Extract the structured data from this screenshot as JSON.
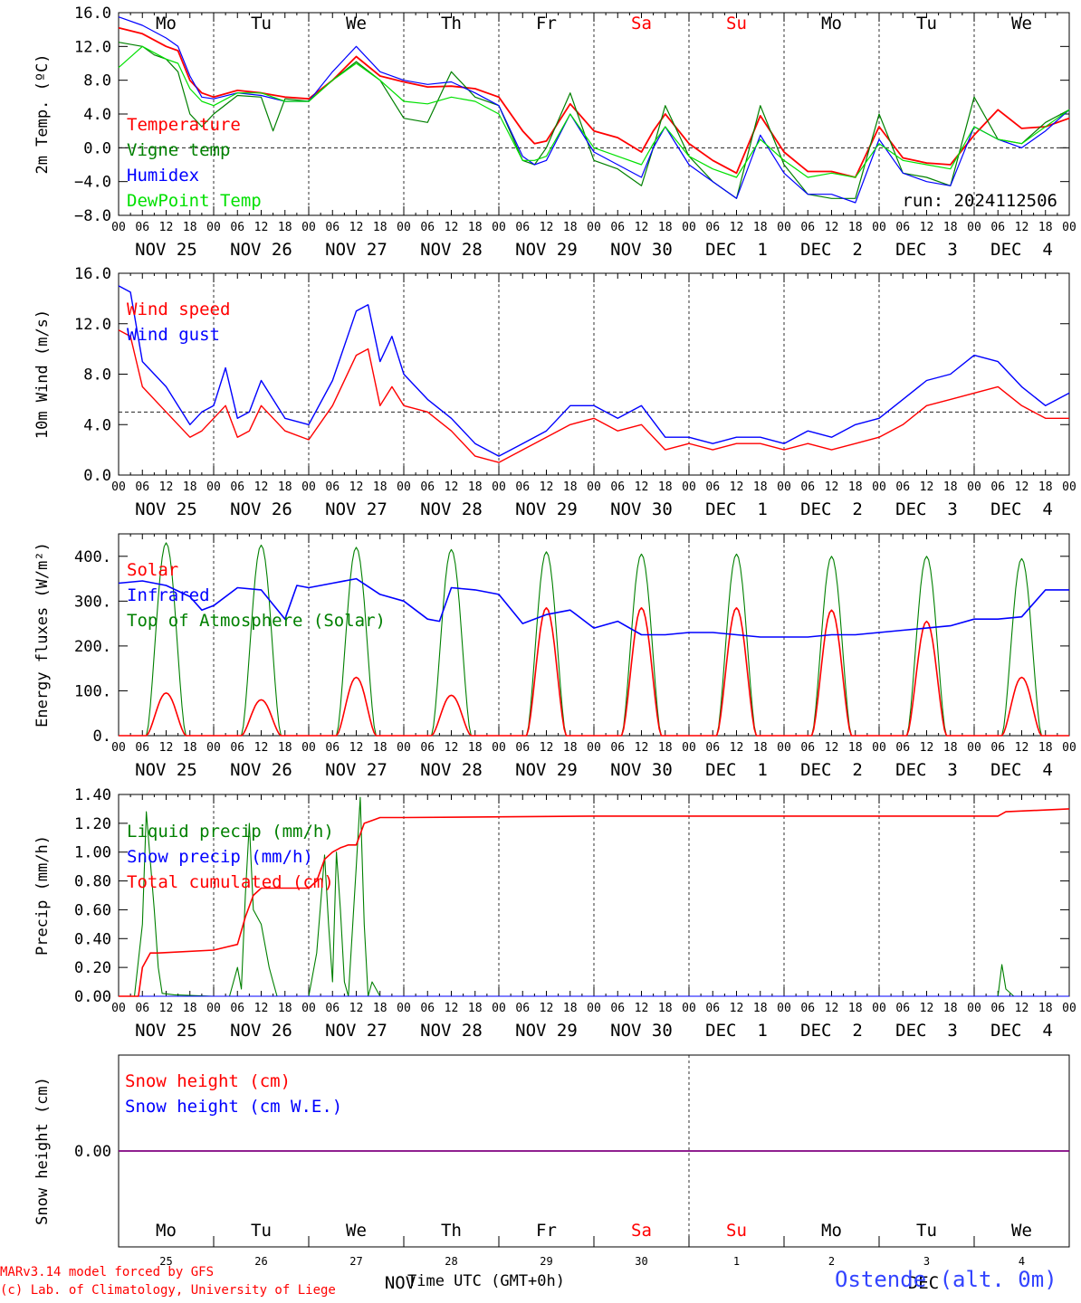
{
  "colors": {
    "red": "#ff0000",
    "green": "#008000",
    "blue": "#0000ff",
    "lightgreen": "#00e000",
    "purple": "#800080",
    "title_blue": "#3344ff"
  },
  "days": {
    "weekdays": [
      "Mo",
      "Tu",
      "We",
      "Th",
      "Fr",
      "Sa",
      "Su",
      "Mo",
      "Tu",
      "We"
    ],
    "weekend_flags": [
      false,
      false,
      false,
      false,
      false,
      true,
      true,
      false,
      false,
      false
    ],
    "date_labels": [
      "NOV 25",
      "NOV 26",
      "NOV 27",
      "NOV 28",
      "NOV 29",
      "NOV 30",
      "DEC  1",
      "DEC  2",
      "DEC  3",
      "DEC  4"
    ],
    "hour_ticks": [
      "00",
      "06",
      "12",
      "18"
    ],
    "final_hour": "00",
    "day_numbers": [
      "25",
      "26",
      "27",
      "28",
      "29",
      "30",
      "1",
      "2",
      "3",
      "4"
    ],
    "month_labels": [
      "NOV",
      "DEC"
    ]
  },
  "chart_data": [
    {
      "type": "line",
      "ylabel": "2m Temp. (ºC)",
      "ylim": [
        -8,
        16
      ],
      "yticks": [
        "16.0",
        "12.0",
        "8.0",
        "4.0",
        "0.0",
        "−4.0",
        "−8.0"
      ],
      "reference_line": 0,
      "run_label": "run: 2024112506",
      "x_unit": "hours from NOV 25 00 UTC",
      "series": [
        {
          "name": "Temperature",
          "color": "red",
          "x": [
            0,
            6,
            12,
            15,
            18,
            21,
            24,
            30,
            36,
            42,
            48,
            54,
            60,
            66,
            72,
            78,
            84,
            90,
            96,
            102,
            105,
            108,
            114,
            120,
            126,
            132,
            135,
            138,
            144,
            150,
            156,
            162,
            168,
            174,
            180,
            186,
            192,
            198,
            204,
            210,
            216,
            222,
            228,
            234,
            240
          ],
          "y": [
            14.2,
            13.5,
            12.0,
            11.5,
            8.0,
            6.5,
            6.0,
            6.8,
            6.5,
            6.0,
            5.8,
            8.0,
            10.8,
            8.5,
            7.8,
            7.2,
            7.3,
            7.0,
            6.0,
            2.0,
            0.5,
            0.8,
            5.2,
            2.0,
            1.2,
            -0.5,
            2.0,
            4.0,
            0.5,
            -1.5,
            -3.0,
            3.8,
            -0.5,
            -2.8,
            -2.8,
            -3.5,
            2.5,
            -1.2,
            -1.8,
            -2.0,
            1.5,
            4.5,
            2.3,
            2.5,
            3.5
          ]
        },
        {
          "name": "Vigne temp",
          "color": "green",
          "x": [
            0,
            6,
            9,
            12,
            15,
            18,
            21,
            24,
            30,
            36,
            39,
            42,
            48,
            54,
            60,
            66,
            72,
            78,
            84,
            90,
            96,
            102,
            105,
            108,
            114,
            120,
            126,
            132,
            135,
            138,
            144,
            150,
            156,
            162,
            168,
            174,
            180,
            186,
            192,
            198,
            204,
            210,
            216,
            222,
            228,
            234,
            240
          ],
          "y": [
            12.5,
            12.0,
            11.0,
            10.5,
            9.0,
            4.0,
            2.5,
            4.0,
            6.2,
            6.0,
            2.0,
            5.8,
            5.5,
            8.0,
            10.2,
            8.0,
            3.5,
            3.0,
            9.0,
            6.0,
            5.0,
            -1.5,
            -2.0,
            0.0,
            6.5,
            -1.5,
            -2.5,
            -4.5,
            0.0,
            5.0,
            -1.0,
            -4.0,
            -6.0,
            5.0,
            -2.0,
            -5.5,
            -6.0,
            -6.0,
            4.0,
            -3.0,
            -3.5,
            -4.5,
            6.0,
            1.0,
            0.5,
            3.0,
            4.5
          ]
        },
        {
          "name": "Humidex",
          "color": "blue",
          "x": [
            0,
            6,
            12,
            15,
            18,
            21,
            24,
            30,
            36,
            42,
            48,
            54,
            60,
            66,
            72,
            78,
            84,
            90,
            96,
            102,
            105,
            108,
            114,
            120,
            126,
            132,
            135,
            138,
            144,
            150,
            156,
            162,
            168,
            174,
            180,
            186,
            192,
            198,
            204,
            210,
            216,
            222,
            228,
            234,
            240
          ],
          "y": [
            15.5,
            14.5,
            13.0,
            12.0,
            8.5,
            6.0,
            5.8,
            6.5,
            6.2,
            5.5,
            5.5,
            9.0,
            12.0,
            9.0,
            8.0,
            7.5,
            7.8,
            6.5,
            5.0,
            -1.0,
            -2.0,
            -1.5,
            4.0,
            -0.5,
            -2.0,
            -3.5,
            0.0,
            2.5,
            -2.0,
            -4.0,
            -6.0,
            1.5,
            -3.0,
            -5.5,
            -5.5,
            -6.5,
            1.0,
            -3.0,
            -4.0,
            -4.5,
            2.5,
            1.0,
            0.0,
            2.0,
            4.5
          ]
        },
        {
          "name": "DewPoint Temp",
          "color": "lightgreen",
          "x": [
            0,
            6,
            12,
            15,
            18,
            21,
            24,
            30,
            36,
            42,
            48,
            54,
            60,
            66,
            72,
            78,
            84,
            90,
            96,
            102,
            105,
            108,
            114,
            120,
            126,
            132,
            135,
            138,
            144,
            150,
            156,
            162,
            168,
            174,
            180,
            186,
            192,
            198,
            204,
            210,
            216,
            222,
            228,
            234,
            240
          ],
          "y": [
            9.5,
            12.0,
            10.5,
            10.0,
            7.0,
            5.5,
            5.0,
            6.5,
            6.5,
            5.5,
            5.5,
            8.0,
            10.0,
            8.0,
            5.5,
            5.2,
            6.0,
            5.5,
            4.0,
            -1.5,
            -1.5,
            -1.0,
            4.0,
            0.0,
            -1.0,
            -2.0,
            0.5,
            2.5,
            -1.0,
            -2.5,
            -3.5,
            1.0,
            -1.5,
            -3.5,
            -3.0,
            -3.5,
            0.5,
            -1.5,
            -2.0,
            -2.5,
            2.5,
            1.0,
            0.5,
            2.5,
            4.5
          ]
        }
      ]
    },
    {
      "type": "line",
      "ylabel": "10m Wind (m/s)",
      "ylim": [
        0,
        16
      ],
      "yticks": [
        "16.0",
        "12.0",
        "8.0",
        "4.0",
        "0.0"
      ],
      "reference_line": 5,
      "series": [
        {
          "name": "Wind speed",
          "color": "red",
          "x": [
            0,
            3,
            6,
            12,
            18,
            21,
            24,
            27,
            30,
            33,
            36,
            42,
            48,
            54,
            60,
            63,
            66,
            69,
            72,
            78,
            84,
            90,
            96,
            102,
            108,
            114,
            120,
            126,
            132,
            138,
            144,
            150,
            156,
            162,
            168,
            174,
            180,
            186,
            192,
            198,
            204,
            210,
            216,
            222,
            228,
            234,
            240
          ],
          "y": [
            11.5,
            11.0,
            7.0,
            5.0,
            3.0,
            3.5,
            4.5,
            5.5,
            3.0,
            3.5,
            5.5,
            3.5,
            2.8,
            5.5,
            9.5,
            10.0,
            5.5,
            7.0,
            5.5,
            5.0,
            3.5,
            1.5,
            1.0,
            2.0,
            3.0,
            4.0,
            4.5,
            3.5,
            4.0,
            2.0,
            2.5,
            2.0,
            2.5,
            2.5,
            2.0,
            2.5,
            2.0,
            2.5,
            3.0,
            4.0,
            5.5,
            6.0,
            6.5,
            7.0,
            5.5,
            4.5,
            4.5
          ]
        },
        {
          "name": "Wind gust",
          "color": "blue",
          "x": [
            0,
            3,
            6,
            12,
            18,
            21,
            24,
            27,
            30,
            33,
            36,
            42,
            48,
            54,
            60,
            63,
            66,
            69,
            72,
            78,
            84,
            90,
            96,
            102,
            108,
            114,
            120,
            126,
            132,
            138,
            144,
            150,
            156,
            162,
            168,
            174,
            180,
            186,
            192,
            198,
            204,
            210,
            216,
            222,
            228,
            234,
            240
          ],
          "y": [
            15.0,
            14.5,
            9.0,
            7.0,
            4.0,
            5.0,
            5.5,
            8.5,
            4.5,
            5.0,
            7.5,
            4.5,
            4.0,
            7.5,
            13.0,
            13.5,
            9.0,
            11.0,
            8.0,
            6.0,
            4.5,
            2.5,
            1.5,
            2.5,
            3.5,
            5.5,
            5.5,
            4.5,
            5.5,
            3.0,
            3.0,
            2.5,
            3.0,
            3.0,
            2.5,
            3.5,
            3.0,
            4.0,
            4.5,
            6.0,
            7.5,
            8.0,
            9.5,
            9.0,
            7.0,
            5.5,
            6.5
          ]
        }
      ]
    },
    {
      "type": "line",
      "ylabel": "Energy fluxes (W/m²)",
      "ylim": [
        0,
        450
      ],
      "yticks": [
        "400.",
        "300.",
        "200.",
        "100.",
        "0."
      ],
      "series": [
        {
          "name": "Solar",
          "color": "red",
          "peaks": [
            95,
            80,
            130,
            90,
            285,
            285,
            285,
            280,
            255,
            130
          ]
        },
        {
          "name": "Infrared",
          "color": "blue",
          "x": [
            0,
            6,
            12,
            18,
            21,
            24,
            30,
            36,
            42,
            45,
            48,
            54,
            60,
            66,
            72,
            78,
            81,
            84,
            90,
            96,
            102,
            108,
            114,
            120,
            126,
            132,
            138,
            144,
            150,
            156,
            162,
            168,
            174,
            180,
            186,
            192,
            198,
            204,
            210,
            216,
            222,
            228,
            234,
            240
          ],
          "y": [
            340,
            345,
            335,
            310,
            280,
            290,
            330,
            325,
            260,
            335,
            330,
            340,
            350,
            315,
            300,
            260,
            255,
            330,
            325,
            315,
            250,
            270,
            280,
            240,
            255,
            225,
            225,
            230,
            230,
            225,
            220,
            220,
            220,
            225,
            225,
            230,
            235,
            240,
            245,
            260,
            260,
            265,
            325,
            325
          ]
        },
        {
          "name": "Top of Atmosphere (Solar)",
          "color": "green",
          "peaks": [
            430,
            425,
            420,
            415,
            410,
            405,
            405,
            400,
            400,
            395
          ]
        }
      ]
    },
    {
      "type": "line",
      "ylabel": "Precip (mm/h)",
      "ylim": [
        0,
        1.4
      ],
      "yticks": [
        "1.40",
        "1.20",
        "1.00",
        "0.80",
        "0.60",
        "0.40",
        "0.20",
        "0.00"
      ],
      "series": [
        {
          "name": "Liquid precip (mm/h)",
          "color": "green",
          "x": [
            0,
            4,
            6,
            7,
            9,
            10,
            11,
            14,
            24,
            28,
            30,
            31,
            32,
            33,
            34,
            36,
            38,
            39,
            40,
            42,
            48,
            50,
            52,
            53,
            54,
            55,
            56,
            57,
            58,
            60,
            61,
            62,
            63,
            64,
            66,
            70,
            72,
            90,
            102,
            120,
            126,
            150,
            200,
            222,
            223,
            224,
            226,
            240
          ],
          "y": [
            0,
            0,
            0.5,
            1.28,
            0.6,
            0.2,
            0.02,
            0.01,
            0.0,
            0.0,
            0.2,
            0.05,
            0.7,
            1.2,
            0.6,
            0.5,
            0.2,
            0.1,
            0.0,
            0.0,
            0.0,
            0.3,
            0.98,
            0.5,
            0.1,
            1.0,
            0.6,
            0.1,
            0.0,
            0.9,
            1.38,
            0.5,
            0.0,
            0.1,
            0.0,
            0.0,
            0.0,
            0.0,
            0.0,
            0.0,
            0.0,
            0.0,
            0.0,
            0.0,
            0.22,
            0.05,
            0.0,
            0.0
          ]
        },
        {
          "name": "Snow precip (mm/h)",
          "color": "blue",
          "x": [
            0,
            240
          ],
          "y": [
            0,
            0
          ]
        },
        {
          "name": "Total cumulated (cm)",
          "color": "red",
          "x": [
            0,
            5,
            6,
            8,
            10,
            24,
            30,
            32,
            34,
            36,
            42,
            48,
            50,
            52,
            54,
            56,
            58,
            60,
            62,
            64,
            66,
            72,
            120,
            168,
            216,
            222,
            224,
            240
          ],
          "y": [
            0,
            0,
            0.2,
            0.3,
            0.3,
            0.32,
            0.36,
            0.55,
            0.7,
            0.75,
            0.75,
            0.75,
            0.8,
            0.95,
            1.0,
            1.03,
            1.05,
            1.05,
            1.2,
            1.22,
            1.24,
            1.24,
            1.25,
            1.25,
            1.25,
            1.25,
            1.28,
            1.3
          ]
        }
      ]
    },
    {
      "type": "line",
      "ylabel": "Snow height (cm)",
      "ylim": [
        -1,
        1
      ],
      "yticks": [
        "0.00"
      ],
      "series": [
        {
          "name": "Snow height (cm)",
          "color": "red",
          "x": [
            0,
            240
          ],
          "y": [
            0,
            0
          ]
        },
        {
          "name": "Snow height (cm W.E.)",
          "color": "blue",
          "x": [
            0,
            240
          ],
          "y": [
            0,
            0
          ]
        }
      ]
    }
  ],
  "footer": {
    "model_line": "MARv3.14 model forced by GFS",
    "credit_line": "(c) Lab. of Climatology, University of Liege",
    "xlabel": "Time UTC (GMT+0h)",
    "station": "Ostende (alt. 0m)"
  }
}
